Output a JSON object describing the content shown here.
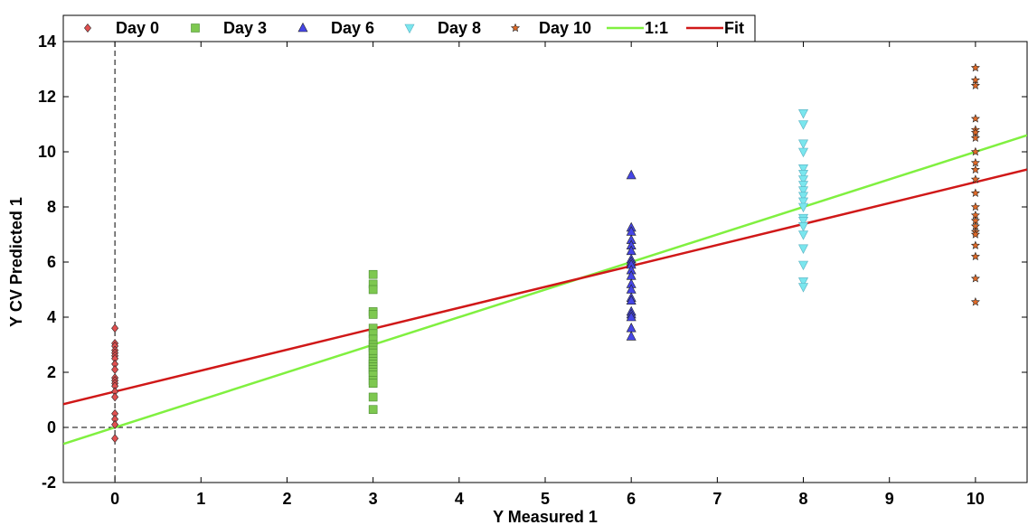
{
  "chart_data": {
    "type": "scatter",
    "title": "",
    "xlabel": "Y Measured 1",
    "ylabel": "Y CV Predicted 1",
    "xlim": [
      -0.6,
      10.6
    ],
    "ylim": [
      -2,
      14
    ],
    "xticks": [
      0,
      1,
      2,
      3,
      4,
      5,
      6,
      7,
      8,
      9,
      10
    ],
    "yticks": [
      -2,
      0,
      2,
      4,
      6,
      8,
      10,
      12,
      14
    ],
    "grid": false,
    "legend_position": "top",
    "reference_lines": {
      "x": 0,
      "y": 0,
      "style": "dashed"
    },
    "series": [
      {
        "name": "Day 0",
        "marker": "diamond",
        "color": "#e05050",
        "x": 0,
        "values": [
          3.6,
          3.05,
          2.95,
          2.8,
          2.7,
          2.6,
          2.5,
          2.3,
          2.1,
          1.8,
          1.7,
          1.6,
          1.5,
          1.3,
          1.1,
          0.5,
          0.3,
          0.1,
          -0.4
        ]
      },
      {
        "name": "Day 3",
        "marker": "square",
        "color": "#7ec850",
        "x": 3,
        "values": [
          5.55,
          5.2,
          5.0,
          4.2,
          4.1,
          3.6,
          3.4,
          3.2,
          3.0,
          2.9,
          2.8,
          2.7,
          2.5,
          2.4,
          2.3,
          2.2,
          2.1,
          2.0,
          1.9,
          1.7,
          1.6,
          1.1,
          0.65
        ]
      },
      {
        "name": "Day 6",
        "marker": "triangle-up",
        "color": "#4646e6",
        "x": 6,
        "values": [
          9.15,
          7.25,
          7.1,
          6.8,
          6.6,
          6.4,
          6.1,
          6.0,
          5.9,
          5.7,
          5.5,
          5.2,
          5.0,
          4.7,
          4.6,
          4.2,
          4.1,
          4.0,
          3.6,
          3.3
        ]
      },
      {
        "name": "Day 8",
        "marker": "triangle-down",
        "color": "#7ae6ee",
        "x": 8,
        "values": [
          11.4,
          11.0,
          10.3,
          10.0,
          9.4,
          9.2,
          9.0,
          8.8,
          8.6,
          8.4,
          8.2,
          8.0,
          7.6,
          7.5,
          7.3,
          7.0,
          6.5,
          5.9,
          5.3,
          5.1
        ]
      },
      {
        "name": "Day 10",
        "marker": "star",
        "color": "#e06a28",
        "x": 10,
        "values": [
          13.05,
          12.6,
          12.4,
          11.2,
          10.8,
          10.7,
          10.5,
          10.0,
          9.6,
          9.35,
          9.0,
          8.5,
          8.0,
          7.7,
          7.5,
          7.3,
          7.1,
          7.0,
          6.6,
          6.2,
          5.4,
          4.55
        ]
      }
    ],
    "lines": [
      {
        "name": "1:1",
        "color": "#80f040",
        "slope": 1.0,
        "intercept": 0.0
      },
      {
        "name": "Fit",
        "color": "#d01818",
        "slope": 0.76,
        "intercept": 1.3
      }
    ]
  }
}
